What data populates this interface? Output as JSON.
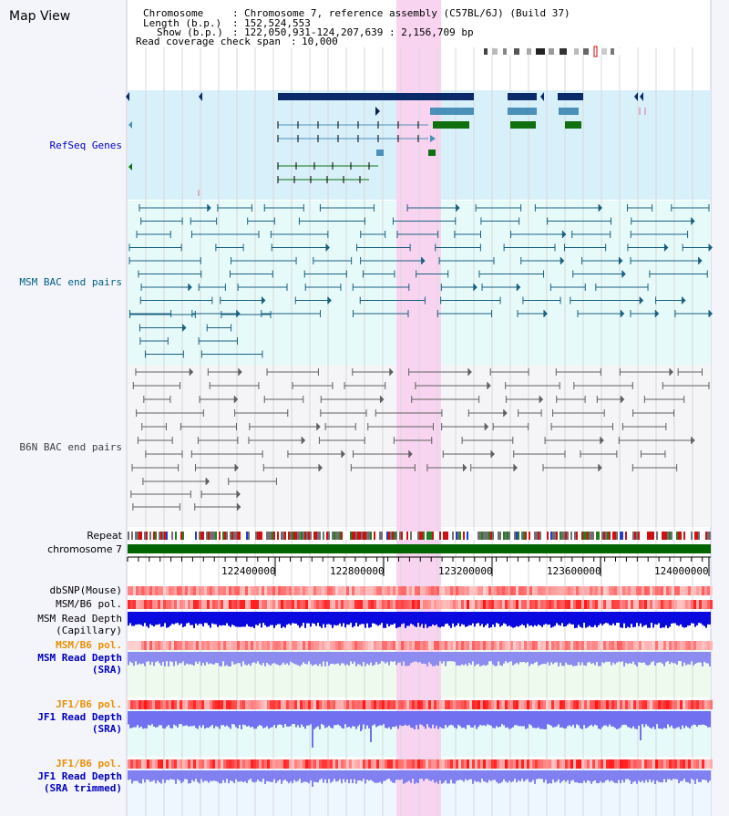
{
  "view_title": "Map View",
  "info": {
    "chromosome_key": "Chromosome",
    "chromosome_value": "Chromosome 7, reference assembly (C57BL/6J) (Build 37)",
    "length_key": "Length (b.p.)",
    "length_value": "152,524,553",
    "show_key": "Show (b.p.)",
    "show_value": "122,050,931-124,207,639 : 2,156,709 bp",
    "coverage_key": "Read coverage check span",
    "coverage_value": "10,000"
  },
  "groups": {
    "refseq": "RefSeq Genes",
    "msm_bac": "MSM BAC end pairs",
    "b6n_bac": "B6N BAC end pairs"
  },
  "tracks": {
    "repeat": "Repeat",
    "chromosome": "chromosome 7",
    "dbsnp": "dbSNP(Mouse)",
    "msm_b6_pol": "MSM/B6 pol.",
    "msm_depth_cap_1": "MSM Read Depth",
    "msm_depth_cap_2": "(Capillary)",
    "msm_b6_pol_2": "MSM/B6 pol.",
    "msm_depth_sra_1": "MSM Read Depth",
    "msm_depth_sra_2": "(SRA)",
    "jf1_b6_pol": "JF1/B6 pol.",
    "jf1_depth_sra_1": "JF1 Read Depth",
    "jf1_depth_sra_2": "(SRA)",
    "jf1_b6_pol_2": "JF1/B6 pol.",
    "jf1_depth_trim_1": "JF1 Read Depth",
    "jf1_depth_trim_2": "(SRA trimmed)"
  },
  "axis": {
    "ticks": [
      "122400000",
      "122800000",
      "123200000",
      "123600000",
      "124000000"
    ]
  },
  "colors": {
    "refseq_bg": "#d8f0fa",
    "msm_bg": "#e6fafa",
    "b6n_bg": "#f5f5f8",
    "highlight": "#f8d4f0",
    "refseq_label": "#0000c0",
    "msm_label": "#006080",
    "b6n_label": "#404040",
    "pol_label": "#e89000",
    "depth_label": "#0000c0",
    "chromosome_bar": "#006400"
  },
  "icons": {
    "chromosome_ideogram": "chromosome-ideogram-icon"
  }
}
